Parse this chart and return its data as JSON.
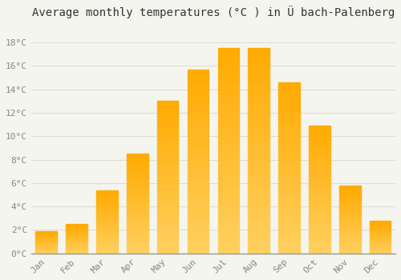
{
  "title": "Average monthly temperatures (°C ) in Ü bach-Palenberg",
  "months": [
    "Jan",
    "Feb",
    "Mar",
    "Apr",
    "May",
    "Jun",
    "Jul",
    "Aug",
    "Sep",
    "Oct",
    "Nov",
    "Dec"
  ],
  "values": [
    1.9,
    2.5,
    5.4,
    8.5,
    13.0,
    15.7,
    17.5,
    17.5,
    14.6,
    10.9,
    5.8,
    2.8
  ],
  "bar_color_top": "#FFAA00",
  "bar_color_bottom": "#FFD060",
  "background_color": "#F5F5F0",
  "plot_bg_color": "#F5F5F0",
  "grid_color": "#DDDDCC",
  "yticks": [
    0,
    2,
    4,
    6,
    8,
    10,
    12,
    14,
    16,
    18
  ],
  "ylim": [
    0,
    19.5
  ],
  "title_fontsize": 10,
  "tick_fontsize": 8,
  "tick_label_color": "#888880",
  "font_family": "monospace"
}
